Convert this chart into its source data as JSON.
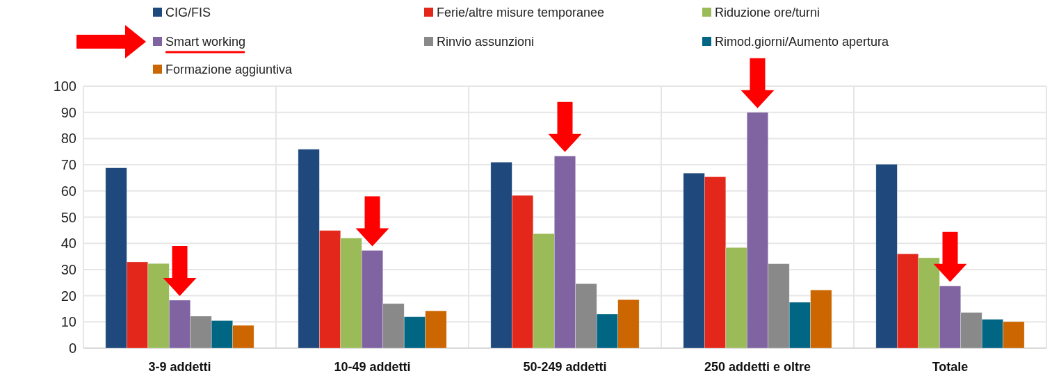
{
  "chart_data": {
    "type": "bar",
    "categories": [
      "3-9 addetti",
      "10-49 addetti",
      "50-249 addetti",
      "250 addetti e oltre",
      "Totale"
    ],
    "series": [
      {
        "name": "CIG/FIS",
        "color": "#1f497d",
        "values": [
          68.8,
          75.9,
          71,
          66.8,
          70.2
        ]
      },
      {
        "name": "Ferie/altre misure temporanee",
        "color": "#e3281b",
        "values": [
          32.9,
          44.9,
          58.3,
          65.4,
          36
        ]
      },
      {
        "name": "Riduzione ore/turni",
        "color": "#9bbb59",
        "values": [
          32.3,
          42,
          43.7,
          38.4,
          34.5
        ]
      },
      {
        "name": "Smart working",
        "color": "#8064a2",
        "values": [
          18.3,
          37.3,
          73.3,
          90,
          23.7
        ]
      },
      {
        "name": "Rinvio assunzioni",
        "color": "#898989",
        "values": [
          12.2,
          17,
          24.6,
          32.2,
          13.6
        ]
      },
      {
        "name": "Rimod.giorni/Aumento apertura",
        "color": "#006684",
        "values": [
          10.5,
          12,
          13,
          17.5,
          11
        ]
      },
      {
        "name": "Formazione aggiuntiva",
        "color": "#cc6600",
        "values": [
          8.7,
          14.2,
          18.5,
          22.2,
          10.1
        ]
      }
    ],
    "ylim": [
      0,
      100
    ],
    "yticks": [
      0,
      10,
      20,
      30,
      40,
      50,
      60,
      70,
      80,
      90,
      100
    ],
    "grid": true,
    "legend": "top"
  }
}
